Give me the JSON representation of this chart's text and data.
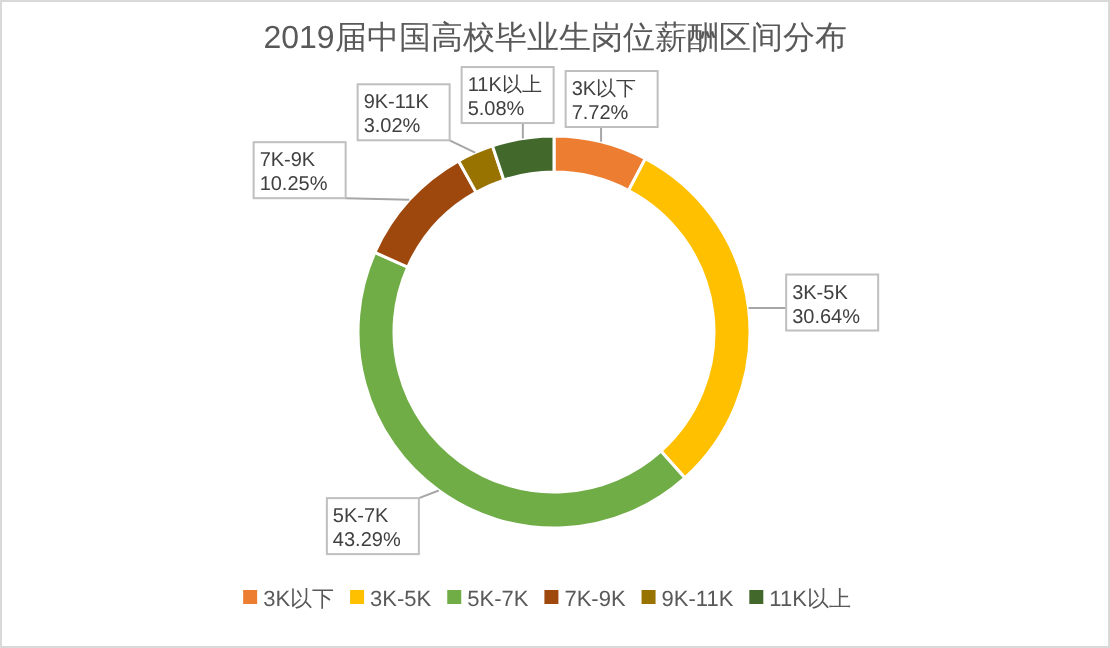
{
  "chart_data": {
    "type": "donut",
    "title": "2019届中国高校毕业生岗位薪酬区间分布",
    "categories": [
      "3K以下",
      "3K-5K",
      "5K-7K",
      "7K-9K",
      "9K-11K",
      "11K以上"
    ],
    "values": [
      7.72,
      30.64,
      43.29,
      10.25,
      3.02,
      5.08
    ],
    "colors": [
      "#ed7d31",
      "#ffc000",
      "#70ad47",
      "#9e480e",
      "#997300",
      "#43682b"
    ],
    "value_labels": [
      "7.72%",
      "30.64%",
      "43.29%",
      "10.25%",
      "3.02%",
      "5.08%"
    ],
    "legend": "bottom"
  }
}
